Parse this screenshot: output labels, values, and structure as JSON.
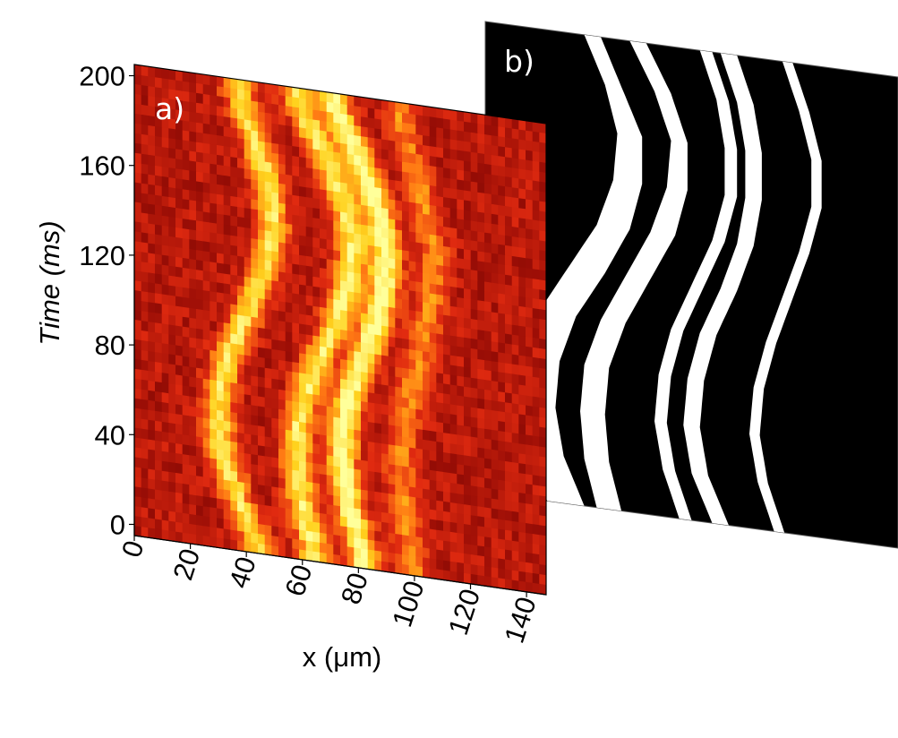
{
  "chart_data": [
    {
      "panel": "a)",
      "type": "heatmap",
      "xlabel": "x (μm)",
      "ylabel": "Time (ms)",
      "xlim": [
        0,
        147
      ],
      "ylim": [
        -5,
        205
      ],
      "x_ticks": [
        "0",
        "20",
        "40",
        "60",
        "80",
        "100",
        "120",
        "140"
      ],
      "y_ticks": [
        "0",
        "40",
        "80",
        "120",
        "160",
        "200"
      ],
      "colormap": [
        "#5a0000",
        "#9c0e06",
        "#e02a10",
        "#ff7a14",
        "#ffd21e",
        "#ffff9a"
      ],
      "bright_bands": [
        {
          "t": [
            0,
            20,
            40,
            60,
            80,
            100,
            120,
            140,
            160,
            180,
            200
          ],
          "x": [
            44,
            36,
            31,
            30,
            33,
            40,
            46,
            50,
            48,
            43,
            37
          ],
          "intensity": 0.8
        },
        {
          "t": [
            0,
            20,
            40,
            60,
            80,
            100,
            120,
            140,
            160,
            180,
            200
          ],
          "x": [
            64,
            60,
            58,
            59,
            64,
            71,
            76,
            78,
            74,
            66,
            58
          ],
          "intensity": 0.85
        },
        {
          "t": [
            0,
            20,
            40,
            60,
            80,
            100,
            120,
            140,
            160,
            180,
            200
          ],
          "x": [
            82,
            77,
            74,
            75,
            79,
            85,
            89,
            90,
            86,
            79,
            71
          ],
          "intensity": 1.0
        },
        {
          "t": [
            0,
            20,
            40,
            60,
            80,
            100,
            120,
            140,
            160,
            180,
            200
          ],
          "x": [
            100,
            97,
            95,
            96,
            99,
            103,
            106,
            107,
            104,
            99,
            94
          ],
          "intensity": 0.45
        }
      ]
    },
    {
      "panel": "b)",
      "type": "heatmap",
      "colormap": [
        "#000000",
        "#ffffff"
      ],
      "white_bands": [
        {
          "u": [
            0,
            0.1,
            0.2,
            0.3,
            0.4,
            0.5,
            0.6,
            0.7,
            0.8,
            0.9,
            1.0
          ],
          "left": [
            0.24,
            0.29,
            0.32,
            0.31,
            0.27,
            0.2,
            0.13,
            0.09,
            0.08,
            0.1,
            0.15
          ],
          "right": [
            0.28,
            0.33,
            0.38,
            0.38,
            0.35,
            0.29,
            0.22,
            0.18,
            0.17,
            0.19,
            0.24
          ]
        },
        {
          "u": [
            0,
            0.1,
            0.2,
            0.3,
            0.4,
            0.5,
            0.6,
            0.7,
            0.8,
            0.9,
            1.0
          ],
          "left": [
            0.35,
            0.41,
            0.45,
            0.44,
            0.4,
            0.34,
            0.28,
            0.24,
            0.23,
            0.24,
            0.27
          ],
          "right": [
            0.39,
            0.45,
            0.49,
            0.49,
            0.46,
            0.4,
            0.34,
            0.3,
            0.29,
            0.3,
            0.33
          ]
        },
        {
          "u": [
            0,
            0.1,
            0.2,
            0.3,
            0.4,
            0.5,
            0.6,
            0.7,
            0.8,
            0.9,
            1.0
          ],
          "left": [
            0.52,
            0.56,
            0.58,
            0.58,
            0.55,
            0.5,
            0.45,
            0.42,
            0.41,
            0.43,
            0.47
          ],
          "right": [
            0.55,
            0.59,
            0.61,
            0.61,
            0.58,
            0.53,
            0.48,
            0.45,
            0.44,
            0.46,
            0.5
          ]
        },
        {
          "u": [
            0,
            0.1,
            0.2,
            0.3,
            0.4,
            0.5,
            0.6,
            0.7,
            0.8,
            0.9,
            1.0
          ],
          "left": [
            0.57,
            0.61,
            0.63,
            0.63,
            0.61,
            0.57,
            0.52,
            0.49,
            0.48,
            0.5,
            0.55
          ],
          "right": [
            0.61,
            0.65,
            0.67,
            0.67,
            0.65,
            0.61,
            0.56,
            0.53,
            0.52,
            0.54,
            0.59
          ]
        },
        {
          "u": [
            0,
            0.1,
            0.2,
            0.3,
            0.4,
            0.5,
            0.6,
            0.7,
            0.8,
            0.9,
            1.0
          ],
          "left": [
            0.72,
            0.76,
            0.79,
            0.79,
            0.76,
            0.72,
            0.68,
            0.65,
            0.64,
            0.66,
            0.7
          ],
          "right": [
            0.745,
            0.785,
            0.815,
            0.815,
            0.785,
            0.745,
            0.705,
            0.675,
            0.665,
            0.685,
            0.725
          ]
        }
      ]
    }
  ]
}
